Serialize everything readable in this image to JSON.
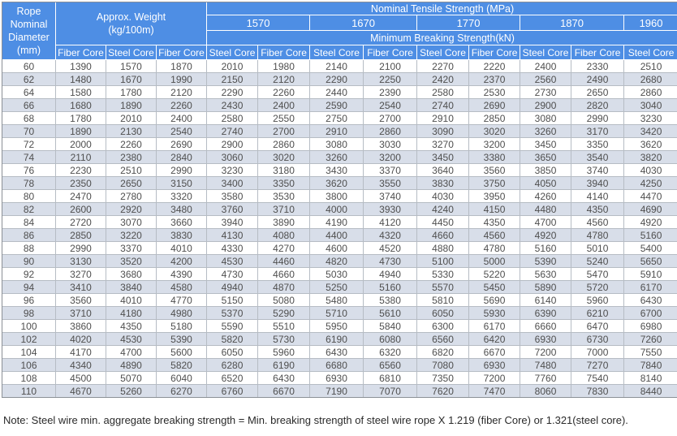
{
  "colors": {
    "header_bg": "#4e8ee4",
    "alt_row_bg": "#d8dee9",
    "grid": "#b6bcc4",
    "outer_border": "#8b9096",
    "data_text": "#4f4f4f"
  },
  "table": {
    "header": {
      "diameter_label": "Rope\nNominal\nDiameter\n(mm)",
      "weight_label": "Approx. Weight\n(kg/100m)",
      "tensile_label": "Nominal Tensile Strength  (MPa)",
      "grades": [
        "1570",
        "1670",
        "1770",
        "1870",
        "1960"
      ],
      "breaking_label": "Minimum Breaking Strength(kN)",
      "core_labels": [
        "Fiber Core",
        "Steel Core",
        "Fiber Core",
        "Steel Core",
        "Fiber Core",
        "Steel Core",
        "Fiber Core",
        "Steel Core",
        "Fiber Core",
        "Steel Core",
        "Fiber Core",
        "Steel Core"
      ]
    },
    "rows": [
      [
        60,
        1390,
        1570,
        1870,
        2010,
        1980,
        2140,
        2100,
        2270,
        2220,
        2400,
        2330,
        2510
      ],
      [
        62,
        1480,
        1670,
        1990,
        2150,
        2120,
        2290,
        2250,
        2420,
        2370,
        2560,
        2490,
        2680
      ],
      [
        64,
        1580,
        1780,
        2120,
        2290,
        2260,
        2440,
        2390,
        2580,
        2530,
        2730,
        2650,
        2860
      ],
      [
        66,
        1680,
        1890,
        2260,
        2430,
        2400,
        2590,
        2540,
        2740,
        2690,
        2900,
        2820,
        3040
      ],
      [
        68,
        1780,
        2010,
        2400,
        2580,
        2550,
        2750,
        2700,
        2910,
        2850,
        3080,
        2990,
        3230
      ],
      [
        70,
        1890,
        2130,
        2540,
        2740,
        2700,
        2910,
        2860,
        3090,
        3020,
        3260,
        3170,
        3420
      ],
      [
        72,
        2000,
        2260,
        2690,
        2900,
        2860,
        3080,
        3030,
        3270,
        3200,
        3450,
        3350,
        3620
      ],
      [
        74,
        2110,
        2380,
        2840,
        3060,
        3020,
        3260,
        3200,
        3450,
        3380,
        3650,
        3540,
        3820
      ],
      [
        76,
        2230,
        2510,
        2990,
        3230,
        3180,
        3430,
        3370,
        3640,
        3560,
        3850,
        3740,
        4030
      ],
      [
        78,
        2350,
        2650,
        3150,
        3400,
        3350,
        3620,
        3550,
        3830,
        3750,
        4050,
        3940,
        4250
      ],
      [
        80,
        2470,
        2780,
        3320,
        3580,
        3530,
        3800,
        3740,
        4030,
        3950,
        4260,
        4140,
        4470
      ],
      [
        82,
        2600,
        2920,
        3480,
        3760,
        3710,
        4000,
        3930,
        4240,
        4150,
        4480,
        4350,
        4690
      ],
      [
        84,
        2720,
        3070,
        3660,
        3940,
        3890,
        4190,
        4120,
        4450,
        4350,
        4700,
        4560,
        4920
      ],
      [
        86,
        2850,
        3220,
        3830,
        4130,
        4080,
        4400,
        4320,
        4660,
        4560,
        4920,
        4780,
        5160
      ],
      [
        88,
        2990,
        3370,
        4010,
        4330,
        4270,
        4600,
        4520,
        4880,
        4780,
        5160,
        5010,
        5400
      ],
      [
        90,
        3130,
        3520,
        4200,
        4530,
        4460,
        4820,
        4730,
        5100,
        5000,
        5390,
        5240,
        5650
      ],
      [
        92,
        3270,
        3680,
        4390,
        4730,
        4660,
        5030,
        4940,
        5330,
        5220,
        5630,
        5470,
        5910
      ],
      [
        94,
        3410,
        3840,
        4580,
        4940,
        4870,
        5250,
        5160,
        5570,
        5450,
        5890,
        5720,
        6170
      ],
      [
        96,
        3560,
        4010,
        4770,
        5150,
        5080,
        5480,
        5380,
        5810,
        5690,
        6140,
        5960,
        6430
      ],
      [
        98,
        3710,
        4180,
        4980,
        5370,
        5290,
        5710,
        5610,
        6050,
        5930,
        6390,
        6210,
        6700
      ],
      [
        100,
        3860,
        4350,
        5180,
        5590,
        5510,
        5950,
        5840,
        6300,
        6170,
        6660,
        6470,
        6980
      ],
      [
        102,
        4020,
        4530,
        5390,
        5820,
        5730,
        6190,
        6080,
        6560,
        6420,
        6930,
        6730,
        7260
      ],
      [
        104,
        4170,
        4700,
        5600,
        6050,
        5960,
        6430,
        6320,
        6820,
        6670,
        7200,
        7000,
        7550
      ],
      [
        106,
        4340,
        4890,
        5820,
        6280,
        6190,
        6680,
        6560,
        7080,
        6930,
        7480,
        7270,
        7840
      ],
      [
        108,
        4500,
        5070,
        6040,
        6520,
        6430,
        6930,
        6810,
        7350,
        7200,
        7760,
        7540,
        8140
      ],
      [
        110,
        4670,
        5260,
        6270,
        6760,
        6670,
        7190,
        7070,
        7620,
        7470,
        8060,
        7830,
        8440
      ]
    ]
  },
  "note": "Note: Steel wire min. aggregate breaking strength = Min. breaking strength of steel wire rope X 1.219 (fiber Core) or 1.321(steel core)."
}
